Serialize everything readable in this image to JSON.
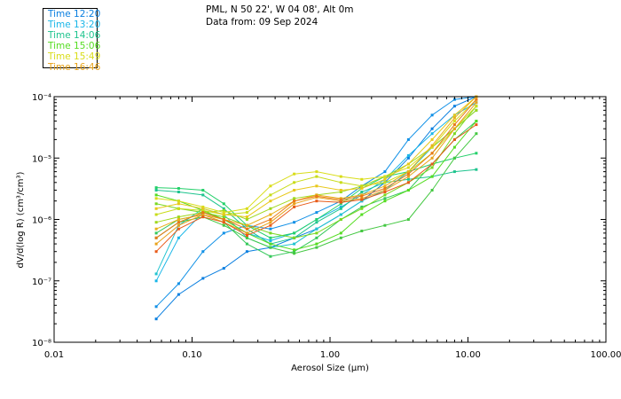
{
  "header": {
    "station": "PML, N 50 22', W 04 08', Alt 0m",
    "data_from": "Data from: 09 Sep 2024"
  },
  "legend": [
    {
      "label": "Time 12:20",
      "color": "#0a7fe0"
    },
    {
      "label": "Time 13:20",
      "color": "#19b6e8"
    },
    {
      "label": "Time 14:06",
      "color": "#1ec48e"
    },
    {
      "label": "Time 15:06",
      "color": "#55dd22"
    },
    {
      "label": "Time 15:49",
      "color": "#d9dd19"
    },
    {
      "label": "Time 16:46",
      "color": "#e8a21a"
    }
  ],
  "chart_data": {
    "type": "line",
    "xlabel": "Aerosol Size (μm)",
    "ylabel": "dV/d(log R) (cm³/cm³)",
    "xscale": "log",
    "yscale": "log",
    "xlim": [
      0.01,
      100
    ],
    "ylim": [
      1e-08,
      0.0001
    ],
    "x_ticks": [
      "0.01",
      "0.10",
      "1.00",
      "10.00",
      "100.00"
    ],
    "y_ticks": [
      "10⁻⁸",
      "10⁻⁷",
      "10⁻⁶",
      "10⁻⁵",
      "10⁻⁴"
    ],
    "x": [
      0.055,
      0.08,
      0.12,
      0.17,
      0.25,
      0.37,
      0.55,
      0.8,
      1.2,
      1.7,
      2.5,
      3.7,
      5.5,
      8.0,
      11.5
    ],
    "series": [
      {
        "color": "#0a7fe0",
        "values": [
          2.4e-08,
          6e-08,
          1.1e-07,
          1.6e-07,
          3e-07,
          3.5e-07,
          5e-07,
          7e-07,
          1.2e-06,
          2e-06,
          4e-06,
          1e-05,
          3e-05,
          7e-05,
          0.0001
        ]
      },
      {
        "color": "#1090e6",
        "values": [
          3.8e-08,
          9e-08,
          3e-07,
          6e-07,
          8e-07,
          7e-07,
          9e-07,
          1.3e-06,
          2e-06,
          3.5e-06,
          6e-06,
          2e-05,
          5e-05,
          9e-05,
          0.0001
        ]
      },
      {
        "color": "#19b6e8",
        "values": [
          1e-07,
          5e-07,
          1.3e-06,
          1e-06,
          6e-07,
          4.5e-07,
          6e-07,
          1e-06,
          1.6e-06,
          2.5e-06,
          4.5e-06,
          1.1e-05,
          2.5e-05,
          5e-05,
          8e-05
        ]
      },
      {
        "color": "#22c4d0",
        "values": [
          1.3e-07,
          8e-07,
          1.5e-06,
          1.2e-06,
          5e-07,
          3.5e-07,
          4e-07,
          7e-07,
          1.2e-06,
          2e-06,
          3e-06,
          6e-06,
          1.5e-05,
          3e-05,
          6e-05
        ]
      },
      {
        "color": "#1ec48e",
        "values": [
          3e-06,
          2.8e-06,
          2.5e-06,
          1.5e-06,
          7e-07,
          4e-07,
          5e-07,
          9e-07,
          1.5e-06,
          2.8e-06,
          4e-06,
          4.5e-06,
          5e-06,
          6e-06,
          6.5e-06
        ]
      },
      {
        "color": "#24d06a",
        "values": [
          3.3e-06,
          3.2e-06,
          3e-06,
          1.8e-06,
          8e-07,
          5e-07,
          6e-07,
          1e-06,
          1.8e-06,
          3.2e-06,
          5e-06,
          6e-06,
          8e-06,
          1e-05,
          1.2e-05
        ]
      },
      {
        "color": "#34c85a",
        "values": [
          6e-07,
          1e-06,
          1.2e-06,
          9e-07,
          4e-07,
          2.5e-07,
          3e-07,
          5e-07,
          1e-06,
          1.6e-06,
          2.2e-06,
          3e-06,
          8e-06,
          2e-05,
          4e-05
        ]
      },
      {
        "color": "#44c842",
        "values": [
          5e-07,
          9e-07,
          1.1e-06,
          8e-07,
          5e-07,
          3.5e-07,
          2.8e-07,
          3.5e-07,
          5e-07,
          6.5e-07,
          8e-07,
          1e-06,
          3e-06,
          1e-05,
          2.5e-05
        ]
      },
      {
        "color": "#55dd22",
        "values": [
          2.5e-06,
          2e-06,
          1.4e-06,
          1e-06,
          6e-07,
          4e-07,
          3.2e-07,
          4e-07,
          6e-07,
          1.2e-06,
          2e-06,
          3e-06,
          5e-06,
          1.5e-05,
          4e-05
        ]
      },
      {
        "color": "#7ad820",
        "values": [
          1.8e-06,
          1.5e-06,
          1.3e-06,
          1.1e-06,
          8e-07,
          6e-07,
          5e-07,
          6e-07,
          1e-06,
          1.5e-06,
          2.5e-06,
          4e-06,
          7e-06,
          2.5e-05,
          7e-05
        ]
      },
      {
        "color": "#9fd81c",
        "values": [
          9e-07,
          1.1e-06,
          1.3e-06,
          1.4e-06,
          1e-06,
          1.5e-06,
          2.2e-06,
          2.5e-06,
          2.8e-06,
          3.5e-06,
          5e-06,
          8e-06,
          1.5e-05,
          3e-05,
          6e-05
        ]
      },
      {
        "color": "#c8dc18",
        "values": [
          1.2e-06,
          1.5e-06,
          1.4e-06,
          1.2e-06,
          1.3e-06,
          2.5e-06,
          4e-06,
          5e-06,
          4e-06,
          3.5e-06,
          4e-06,
          6e-06,
          1.2e-05,
          3e-05,
          7e-05
        ]
      },
      {
        "color": "#d9dd19",
        "values": [
          2.2e-06,
          2e-06,
          1.6e-06,
          1.3e-06,
          1.5e-06,
          3.5e-06,
          5.5e-06,
          6e-06,
          5e-06,
          4.5e-06,
          5e-06,
          7e-06,
          1.5e-05,
          4e-05,
          9e-05
        ]
      },
      {
        "color": "#e8c81a",
        "values": [
          1.5e-06,
          1.8e-06,
          1.5e-06,
          1.2e-06,
          1.1e-06,
          2e-06,
          3e-06,
          3.5e-06,
          3e-06,
          3.2e-06,
          4.5e-06,
          8e-06,
          2e-05,
          5e-05,
          0.0001
        ]
      },
      {
        "color": "#e8b01a",
        "values": [
          7e-07,
          1e-06,
          1.2e-06,
          1e-06,
          8e-07,
          1.2e-06,
          2e-06,
          2.5e-06,
          2.2e-06,
          2.5e-06,
          3.5e-06,
          6e-06,
          1.6e-05,
          4.5e-05,
          0.0001
        ]
      },
      {
        "color": "#e8a21a",
        "values": [
          4e-07,
          8e-07,
          1.2e-06,
          9e-07,
          6e-07,
          9e-07,
          1.8e-06,
          2.3e-06,
          2e-06,
          2.2e-06,
          3e-06,
          5e-06,
          1e-05,
          3e-05,
          8e-05
        ]
      },
      {
        "color": "#e87818",
        "values": [
          5e-07,
          9e-07,
          1.3e-06,
          1e-06,
          7e-07,
          1e-06,
          2e-06,
          2.4e-06,
          2.1e-06,
          2.4e-06,
          3.2e-06,
          5.5e-06,
          1.2e-05,
          3.5e-05,
          9e-05
        ]
      },
      {
        "color": "#e85a18",
        "values": [
          3e-07,
          7e-07,
          1.1e-06,
          9e-07,
          5.5e-07,
          8e-07,
          1.6e-06,
          2e-06,
          1.9e-06,
          2.1e-06,
          2.8e-06,
          4e-06,
          8e-06,
          2e-05,
          3.5e-05
        ]
      }
    ]
  }
}
